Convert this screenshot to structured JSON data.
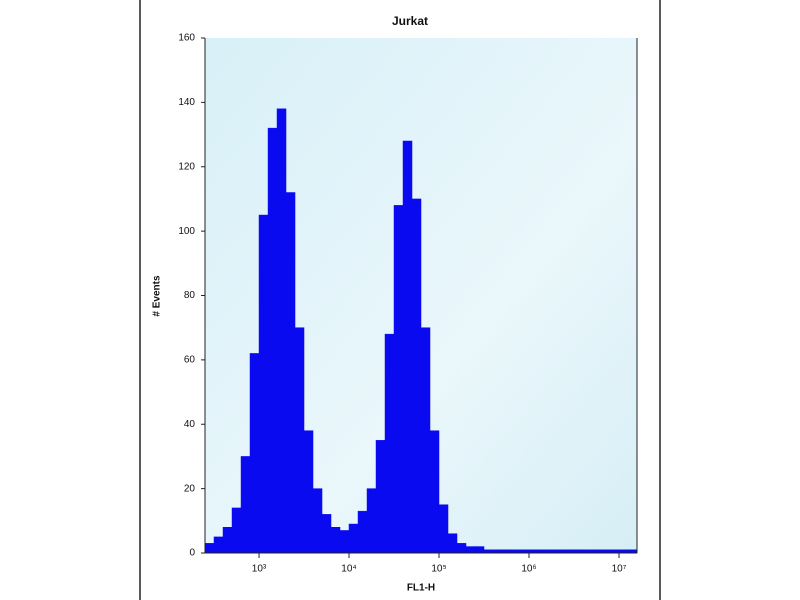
{
  "chart_data": {
    "type": "histogram",
    "title": "Jurkat",
    "x_label": "FL1-H",
    "y_label": "# Events",
    "color": "#0a0af0",
    "log_x": true,
    "bins": [
      251,
      316,
      398,
      501,
      631,
      794,
      1000,
      1259,
      1585,
      1995,
      2512,
      3162,
      3981,
      5012,
      6310,
      7943,
      10000,
      12589,
      15849,
      19953,
      25119,
      31623,
      39811,
      50119,
      63096,
      79433,
      100000,
      125893,
      158489,
      199526,
      251189,
      316228,
      398107,
      501187,
      630957,
      794328,
      1000000,
      1258925,
      1584893,
      1995262,
      2511886,
      3162278,
      3981072,
      5011872,
      6309573,
      7943282,
      10000000,
      12589254,
      15848932
    ],
    "values": [
      3,
      5,
      8,
      14,
      30,
      62,
      105,
      132,
      138,
      112,
      70,
      38,
      20,
      12,
      8,
      7,
      9,
      13,
      20,
      35,
      68,
      108,
      128,
      110,
      70,
      38,
      15,
      6,
      3,
      2,
      2,
      1,
      1,
      1,
      1,
      1,
      1,
      1,
      1,
      1,
      1,
      1,
      1,
      1,
      1,
      1,
      1,
      1
    ],
    "xlim": [
      251,
      15848932
    ],
    "xticks": [
      {
        "value": 1000,
        "label": "10³"
      },
      {
        "value": 10000,
        "label": "10⁴"
      },
      {
        "value": 100000,
        "label": "10⁵"
      },
      {
        "value": 1000000,
        "label": "10⁶"
      },
      {
        "value": 10000000,
        "label": "10⁷"
      }
    ],
    "ylim": [
      0,
      160
    ],
    "yticks": [
      0,
      20,
      40,
      60,
      80,
      100,
      120,
      140,
      160
    ]
  }
}
